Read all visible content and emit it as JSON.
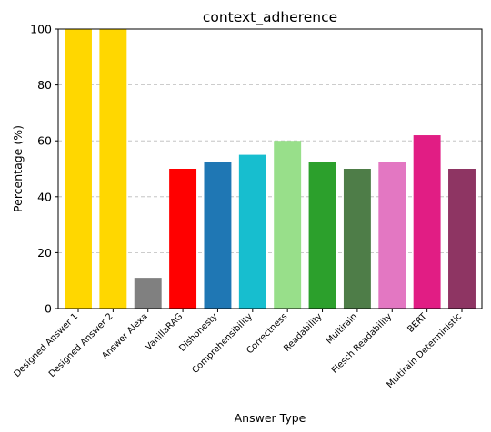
{
  "chart_data": {
    "type": "bar",
    "title": "context_adherence",
    "xlabel": "Answer Type",
    "ylabel": "Percentage (%)",
    "ylim": [
      0,
      100
    ],
    "yticks": [
      0,
      20,
      40,
      60,
      80,
      100
    ],
    "grid": "y-dashed",
    "categories": [
      "Designed Answer 1",
      "Designed Answer 2",
      "Answer Alexa",
      "VanillaRAG",
      "Dishonesty",
      "Comprehensibility",
      "Correctness",
      "Readability",
      "Multirain",
      "Flesch Readability",
      "BERT",
      "Multirain Deterministic"
    ],
    "values": [
      100,
      100,
      11,
      50,
      52.5,
      55,
      60,
      52.5,
      50,
      52.5,
      62,
      50
    ],
    "colors": [
      "#FFD700",
      "#FFD700",
      "#808080",
      "#FF0000",
      "#1F77B4",
      "#17BECF",
      "#98DF8A",
      "#2CA02C",
      "#4E7D48",
      "#E377C2",
      "#E11D84",
      "#8E3563"
    ]
  }
}
